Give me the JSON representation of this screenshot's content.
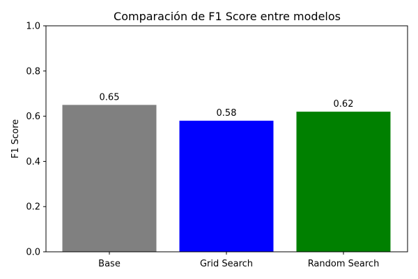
{
  "chart_data": {
    "type": "bar",
    "title": "Comparación de F1 Score entre modelos",
    "xlabel": "",
    "ylabel": "F1 Score",
    "categories": [
      "Base",
      "Grid Search",
      "Random Search"
    ],
    "values": [
      0.65,
      0.58,
      0.62
    ],
    "value_labels": [
      "0.65",
      "0.58",
      "0.62"
    ],
    "colors": [
      "#808080",
      "#0000ff",
      "#008000"
    ],
    "ylim": [
      0,
      1.0
    ],
    "yticks": [
      0.0,
      0.2,
      0.4,
      0.6,
      0.8,
      1.0
    ],
    "ytick_labels": [
      "0.0",
      "0.2",
      "0.4",
      "0.6",
      "0.8",
      "1.0"
    ],
    "grid": false,
    "legend": false
  }
}
